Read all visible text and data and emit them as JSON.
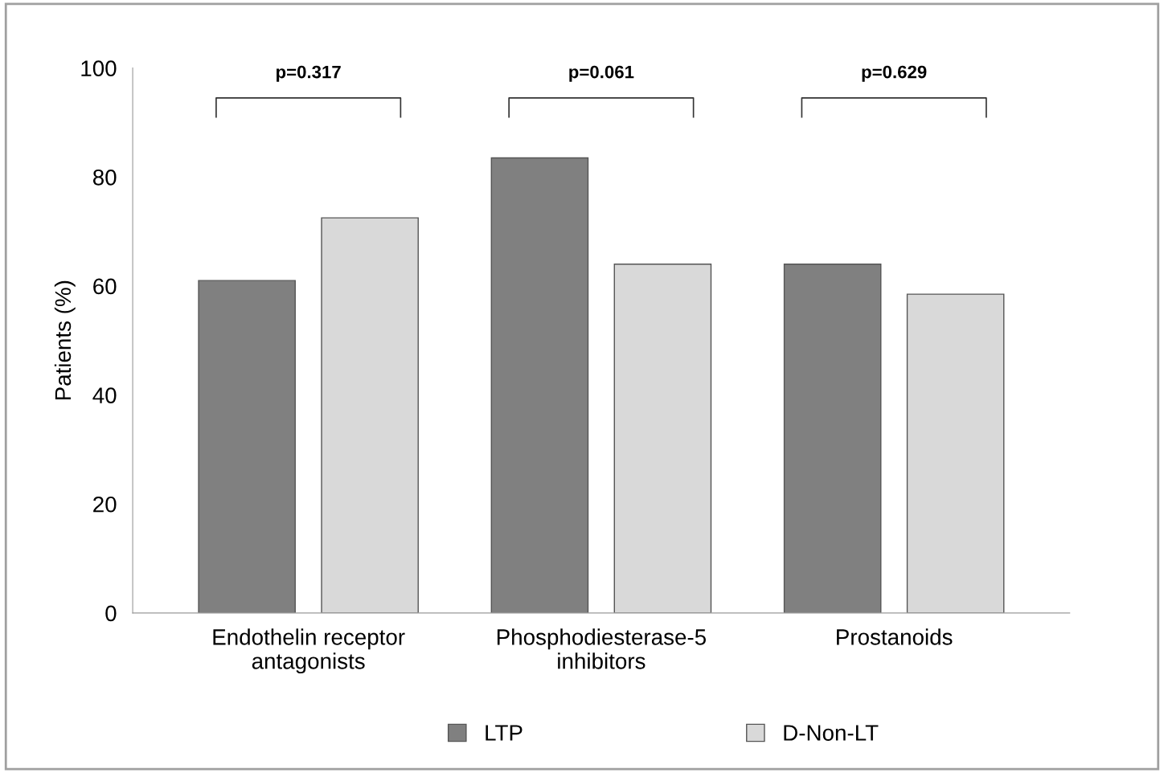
{
  "chart_data": {
    "type": "bar",
    "ylabel": "Patients (%)",
    "categories": [
      "Endothelin receptor\nantagonists",
      "Phosphodiesterase-5\ninhibitors",
      "Prostanoids"
    ],
    "series": [
      {
        "name": "LTP",
        "color": "#808080",
        "values": [
          61,
          83.5,
          64
        ]
      },
      {
        "name": "D-Non-LT",
        "color": "#d9d9d9",
        "values": [
          72.5,
          64,
          58.5
        ]
      }
    ],
    "ylim": [
      0,
      100
    ],
    "yticks": [
      0,
      20,
      40,
      60,
      80,
      100
    ],
    "grid": false,
    "legend": "bottom",
    "annotations": [
      "p=0.317",
      "p=0.061",
      "p=0.629"
    ]
  }
}
